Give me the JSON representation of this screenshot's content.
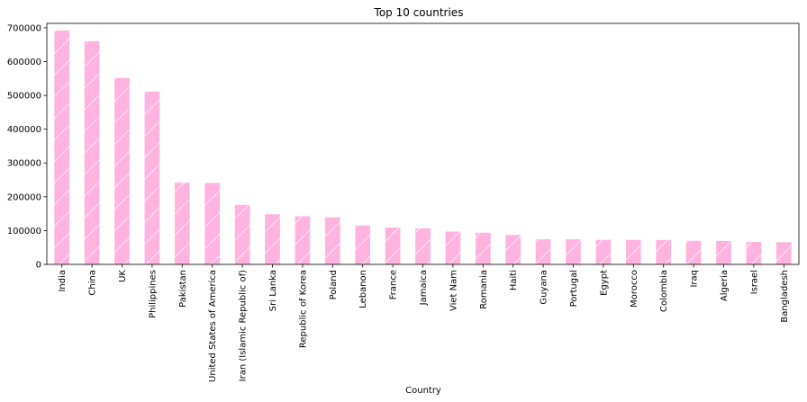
{
  "chart_data": {
    "type": "bar",
    "title": "Top 10 countries",
    "xlabel": "Country",
    "ylabel": "",
    "ylim": [
      0,
      713000
    ],
    "yticks": [
      0,
      100000,
      200000,
      300000,
      400000,
      500000,
      600000,
      700000
    ],
    "ytick_labels": [
      "0",
      "100000",
      "200000",
      "300000",
      "400000",
      "500000",
      "600000",
      "700000"
    ],
    "categories": [
      "India",
      "China",
      "UK",
      "Philippines",
      "Pakistan",
      "United States of America",
      "Iran (Islamic Republic of)",
      "Sri Lanka",
      "Republic of Korea",
      "Poland",
      "Lebanon",
      "France",
      "Jamaica",
      "Viet Nam",
      "Romania",
      "Haiti",
      "Guyana",
      "Portugal",
      "Egypt",
      "Morocco",
      "Colombia",
      "Iraq",
      "Algeria",
      "Israel",
      "Bangladesh"
    ],
    "values": [
      691904,
      659962,
      551500,
      511391,
      241600,
      241122,
      175923,
      148358,
      142581,
      139241,
      115359,
      109091,
      106431,
      97146,
      93585,
      87265,
      74144,
      74090,
      72745,
      72650,
      72066,
      69789,
      69439,
      66508,
      65568
    ],
    "grid": false,
    "legend": "none",
    "colors": {
      "bar_fill": "#ffb3de",
      "hatch": "#ffffff",
      "axis": "#000000"
    },
    "hatch": "diagonal"
  }
}
